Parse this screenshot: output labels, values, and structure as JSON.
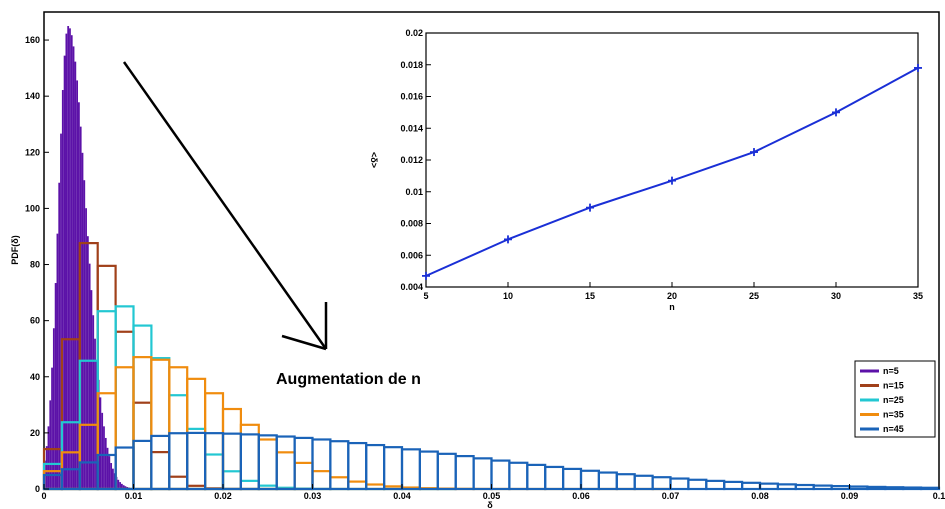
{
  "chart_data": [
    {
      "type": "histogram",
      "xlabel": "δ",
      "ylabel": "PDF(δ)",
      "xlim": [
        0,
        0.1
      ],
      "ylim": [
        0,
        170
      ],
      "xticks": [
        "0",
        "0.01",
        "0.02",
        "0.03",
        "0.04",
        "0.05",
        "0.06",
        "0.07",
        "0.08",
        "0.09",
        "0.1"
      ],
      "yticks": [
        "0",
        "20",
        "40",
        "60",
        "80",
        "100",
        "120",
        "140",
        "160"
      ],
      "legend_position": "lower-right",
      "annotation": "Augmentation de n",
      "grid": false,
      "series": [
        {
          "name": "n=5",
          "color": "#5c12a8",
          "fill": true,
          "peak_x": 0.0027,
          "peak_y": 165,
          "sigma_left": 0.0011,
          "sigma_right": 0.002,
          "x_end": 0.014
        },
        {
          "name": "n=15",
          "color": "#a0401a",
          "fill": false,
          "peak_x": 0.0052,
          "peak_y": 88,
          "sigma_left": 0.0022,
          "sigma_right": 0.004,
          "x_end": 0.03
        },
        {
          "name": "n=25",
          "color": "#22c7d2",
          "fill": false,
          "peak_x": 0.008,
          "peak_y": 66,
          "sigma_left": 0.0035,
          "sigma_right": 0.006,
          "x_end": 0.045
        },
        {
          "name": "n=35",
          "color": "#f08c0e",
          "fill": false,
          "peak_x": 0.011,
          "peak_y": 47,
          "sigma_left": 0.005,
          "sigma_right": 0.01,
          "x_end": 0.07
        },
        {
          "name": "n=45",
          "color": "#1a63b8",
          "fill": false,
          "peak_x": 0.016,
          "peak_y": 20,
          "sigma_left": 0.009,
          "sigma_right": 0.03,
          "x_end": 0.1
        }
      ]
    },
    {
      "type": "line",
      "xlabel": "n",
      "ylabel": "<δ>",
      "xlim": [
        5,
        35
      ],
      "ylim": [
        0.004,
        0.02
      ],
      "xticks": [
        "5",
        "10",
        "15",
        "20",
        "25",
        "30",
        "35"
      ],
      "yticks": [
        "0.004",
        "0.006",
        "0.008",
        "0.01",
        "0.012",
        "0.014",
        "0.016",
        "0.018",
        "0.02"
      ],
      "grid": false,
      "series": [
        {
          "color": "#1a2fd6",
          "marker": "+",
          "x": [
            5,
            10,
            15,
            20,
            25,
            30,
            35
          ],
          "y": [
            0.0047,
            0.007,
            0.009,
            0.0107,
            0.0125,
            0.015,
            0.0178
          ]
        }
      ]
    }
  ]
}
